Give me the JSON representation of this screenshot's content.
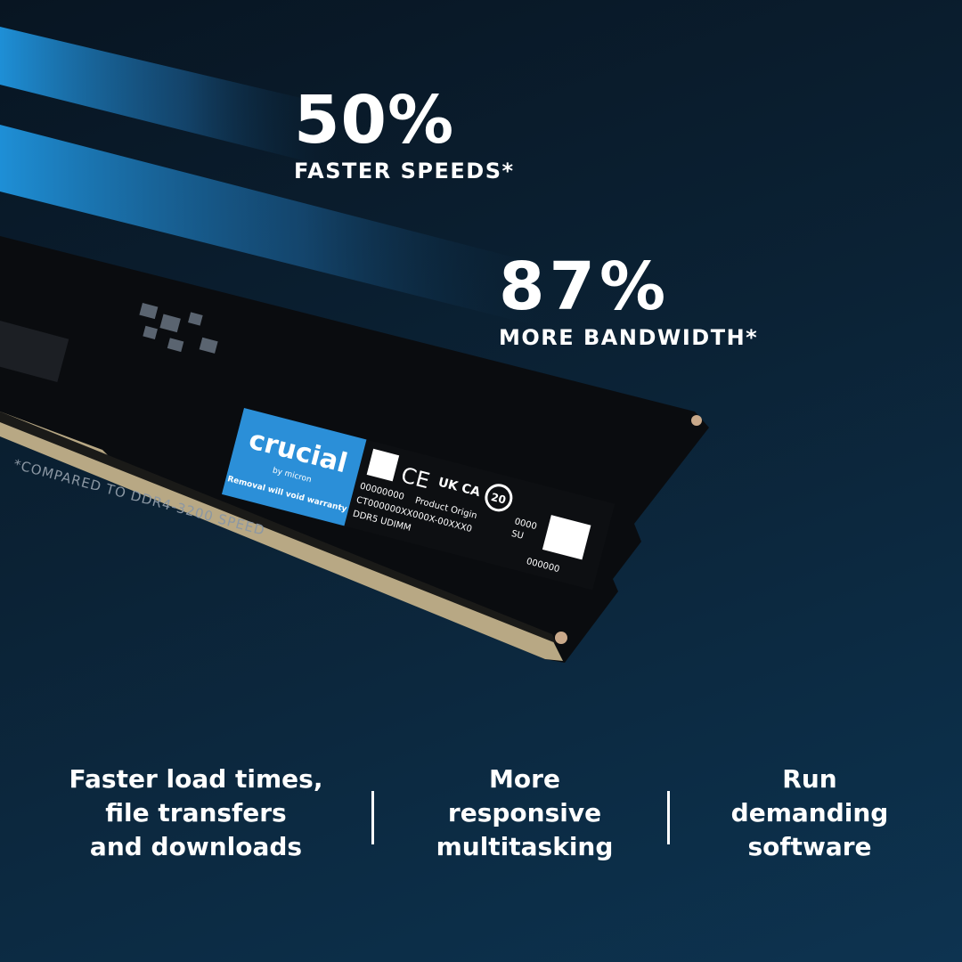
{
  "stats": [
    {
      "value": "50%",
      "label": "FASTER SPEEDS*"
    },
    {
      "value": "87%",
      "label": "MORE BANDWIDTH*"
    }
  ],
  "footnote": "*COMPARED TO DDR4-3200 SPEED",
  "product_label": {
    "brand": "crucial",
    "sub_brand": "by micron",
    "warranty": "Removal will void warranty",
    "serial": "00000000",
    "part_number": "CT000000XX000X-00XXX0",
    "type": "DDR5 UDIMM",
    "origin": "Product Origin",
    "marks": [
      "CE",
      "UK CA",
      "20"
    ],
    "code1": "0000",
    "code2": "SU",
    "code3": "000000"
  },
  "features": [
    {
      "lines": [
        "Faster load times,",
        "file transfers",
        "and downloads"
      ]
    },
    {
      "lines": [
        "More",
        "responsive",
        "multitasking"
      ]
    },
    {
      "lines": [
        "Run",
        "demanding",
        "software"
      ]
    }
  ],
  "colors": {
    "accent": "#1e8fd6",
    "background": "#0b2235",
    "label_blue": "#2b8fd8"
  }
}
